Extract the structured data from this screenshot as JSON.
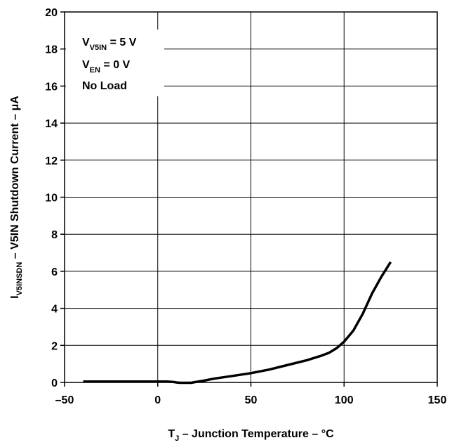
{
  "chart_data": {
    "type": "line",
    "xlabel": {
      "main": "T",
      "sub": "J",
      "rest": " – Junction Temperature – °C"
    },
    "ylabel": {
      "main": "I",
      "sub": "V5INSDN",
      "rest": " – V5IN Shutdown Current – μA"
    },
    "xlim": [
      -50,
      150
    ],
    "ylim": [
      0,
      20
    ],
    "x_ticks": [
      -50,
      0,
      50,
      100,
      150
    ],
    "x_tick_labels": [
      "–50",
      "0",
      "50",
      "100",
      "150"
    ],
    "y_ticks": [
      0,
      2,
      4,
      6,
      8,
      10,
      12,
      14,
      16,
      18,
      20
    ],
    "y_tick_labels": [
      "0",
      "2",
      "4",
      "6",
      "8",
      "10",
      "12",
      "14",
      "16",
      "18",
      "20"
    ],
    "grid": true,
    "annotation": [
      {
        "main": "V",
        "sub": "V5IN",
        "rest": " = 5 V"
      },
      {
        "main": "V",
        "sub": "EN",
        "rest": " = 0 V"
      },
      {
        "main": "No Load",
        "sub": "",
        "rest": ""
      }
    ],
    "series": [
      {
        "x": [
          -40,
          -20,
          0,
          5,
          8,
          10,
          12,
          15,
          18,
          20,
          25,
          30,
          40,
          50,
          60,
          70,
          80,
          88,
          92,
          96,
          100,
          105,
          110,
          115,
          120,
          125
        ],
        "y": [
          0.05,
          0.05,
          0.05,
          0.05,
          0.03,
          0.0,
          -0.02,
          -0.02,
          -0.02,
          0.02,
          0.1,
          0.2,
          0.35,
          0.5,
          0.7,
          0.95,
          1.2,
          1.45,
          1.6,
          1.85,
          2.2,
          2.8,
          3.7,
          4.8,
          5.7,
          6.5
        ]
      }
    ]
  }
}
